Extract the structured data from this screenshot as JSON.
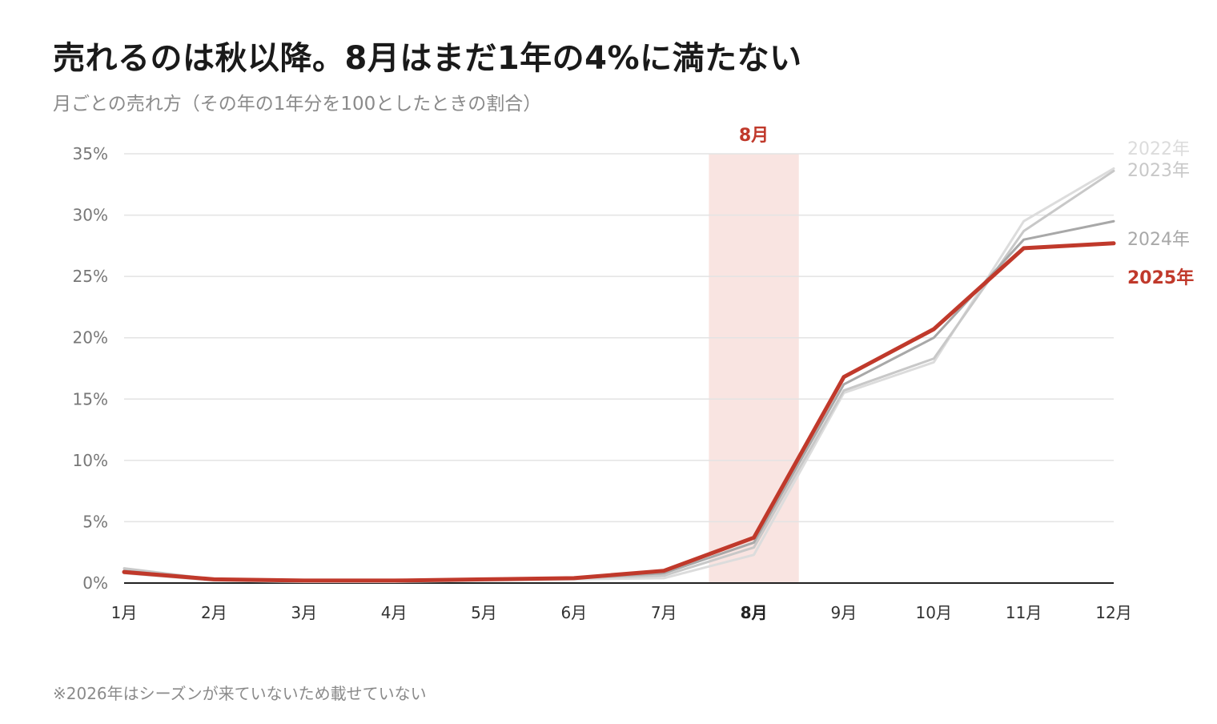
{
  "title": "売れるのは秋以降。8月はまだ1年の4%に満たない",
  "subtitle": "月ごとの売れ方（その年の1年分を100としたときの割合）",
  "footnote": "※2026年はシーズンが来ていないため載せていない",
  "chart_data": {
    "type": "line",
    "categories": [
      "1月",
      "2月",
      "3月",
      "4月",
      "5月",
      "6月",
      "7月",
      "8月",
      "9月",
      "10月",
      "11月",
      "12月"
    ],
    "y_ticks": [
      "0%",
      "5%",
      "10%",
      "15%",
      "20%",
      "25%",
      "30%",
      "35%"
    ],
    "ylim": [
      0,
      35
    ],
    "grid": true,
    "highlight": {
      "label": "8月",
      "category_index": 7,
      "color": "#f9e4e1",
      "label_color": "#c0392b"
    },
    "series": [
      {
        "name": "2022年",
        "color": "#dcdcdc",
        "width": 3,
        "values": [
          0.8,
          0.2,
          0.1,
          0.1,
          0.2,
          0.3,
          0.4,
          2.3,
          15.5,
          18.0,
          29.5,
          33.8
        ]
      },
      {
        "name": "2023年",
        "color": "#c8c8c8",
        "width": 3,
        "values": [
          1.2,
          0.3,
          0.2,
          0.2,
          0.3,
          0.4,
          0.6,
          2.9,
          15.7,
          18.3,
          28.7,
          33.6
        ]
      },
      {
        "name": "2024年",
        "color": "#a8a8a8",
        "width": 3,
        "values": [
          1.0,
          0.3,
          0.2,
          0.2,
          0.3,
          0.4,
          0.8,
          3.3,
          16.2,
          20.0,
          28.0,
          29.5
        ]
      },
      {
        "name": "2025年",
        "color": "#c0392b",
        "width": 5,
        "bold": true,
        "values": [
          0.9,
          0.3,
          0.2,
          0.2,
          0.3,
          0.4,
          1.0,
          3.7,
          16.8,
          20.7,
          27.3,
          27.7
        ]
      }
    ]
  }
}
